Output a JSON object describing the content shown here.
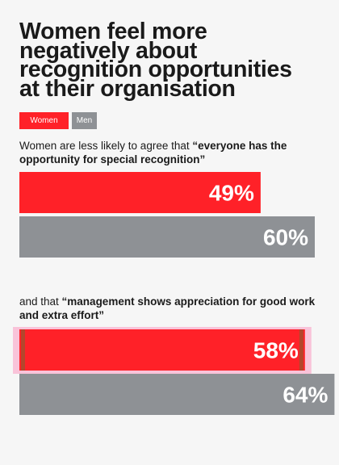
{
  "page": {
    "title": "Women feel more\nnegatively about\nrecognition opportunities\nat their organisation",
    "background": "#f6f6f6"
  },
  "legend": [
    {
      "label": "Women",
      "color": "#ff2128"
    },
    {
      "label": "Men",
      "color": "#8e9195"
    }
  ],
  "questions": [
    {
      "prefix": "Women are less likely to agree that ",
      "quote": "“everyone has the opportunity for special recognition”"
    },
    {
      "prefix": "and that ",
      "quote": "“management shows appreciation for good work and extra effort”"
    }
  ],
  "chart_data": [
    {
      "type": "bar",
      "orientation": "horizontal",
      "series": [
        {
          "name": "Women",
          "values": [
            49
          ],
          "labels": [
            "49%"
          ],
          "color": "#ff2128"
        },
        {
          "name": "Men",
          "values": [
            60
          ],
          "labels": [
            "60%"
          ],
          "color": "#8e9195"
        }
      ],
      "xlim": [
        0,
        100
      ],
      "grid": false
    },
    {
      "type": "bar",
      "orientation": "horizontal",
      "series": [
        {
          "name": "Women",
          "values": [
            58
          ],
          "labels": [
            "58%"
          ],
          "color": "#ff2128",
          "highlighted": true,
          "highlight_color": "#f9c3d9"
        },
        {
          "name": "Men",
          "values": [
            64
          ],
          "labels": [
            "64%"
          ],
          "color": "#8e9195"
        }
      ],
      "xlim": [
        0,
        100
      ],
      "grid": false
    }
  ]
}
